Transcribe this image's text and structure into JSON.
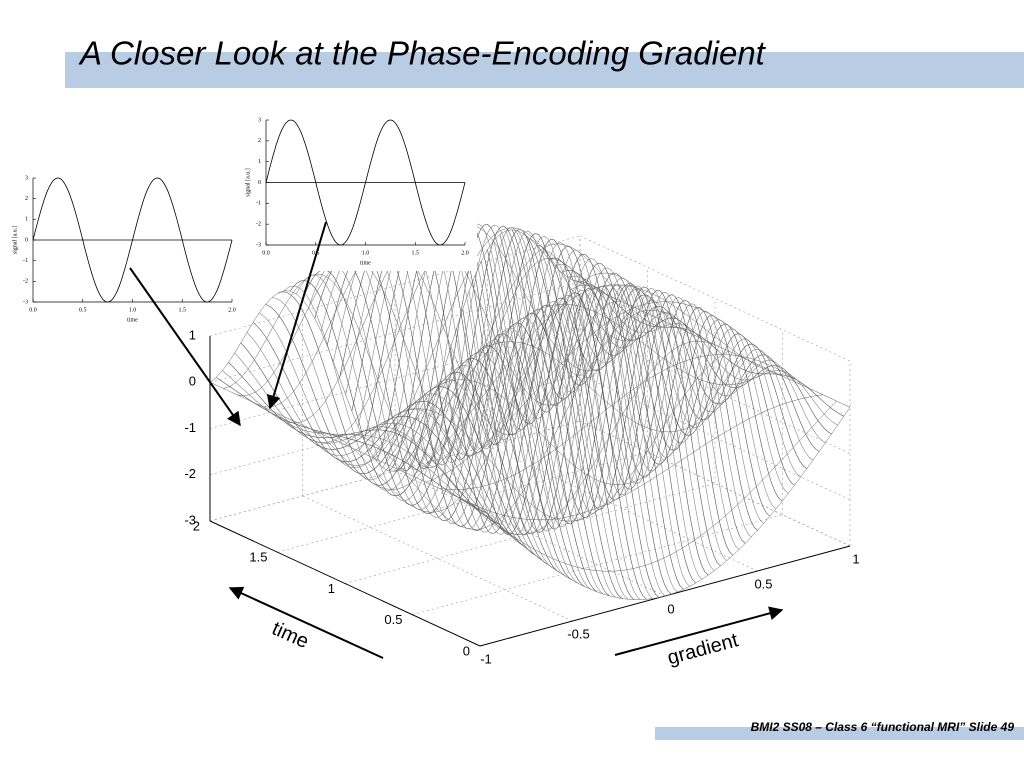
{
  "title": "A Closer Look at the Phase-Encoding Gradient",
  "footer": "BMI2 SS08 – Class 6 “functional MRI” Slide 49",
  "insets": [
    {
      "ylabel": "signal [a.u.]",
      "xlabel": "time",
      "ylim": [
        -3,
        3
      ],
      "yticks": [
        -3,
        -2,
        -1,
        0,
        1,
        2,
        3
      ],
      "xlim": [
        0,
        2
      ],
      "xticks": [
        {
          "value": 0,
          "label": "0.0"
        },
        0.5,
        {
          "value": 1,
          "label": "1.0"
        },
        1.5,
        {
          "value": 2,
          "label": "2.0"
        }
      ]
    },
    {
      "ylabel": "signal [a.u.]",
      "xlabel": "time",
      "ylim": [
        -3,
        3
      ],
      "yticks": [
        -3,
        -2,
        -1,
        0,
        1,
        2,
        3
      ],
      "xlim": [
        0,
        2
      ],
      "xticks": [
        {
          "value": 0,
          "label": "0.0"
        },
        0.5,
        {
          "value": 1,
          "label": "1.0"
        },
        1.5,
        {
          "value": 2,
          "label": "2.0"
        }
      ]
    }
  ],
  "surface": {
    "zticks": [
      1,
      0,
      -1,
      -2,
      -3
    ],
    "zlim": [
      -3,
      1
    ],
    "timeticks": [
      0,
      0.5,
      1,
      1.5,
      2
    ],
    "timelim": [
      0,
      2
    ],
    "gradientticks": [
      -1,
      -0.5,
      0,
      0.5,
      1
    ],
    "gradientlim": [
      -1,
      1
    ]
  },
  "labels": {
    "time": "time",
    "gradient": "gradient"
  }
}
